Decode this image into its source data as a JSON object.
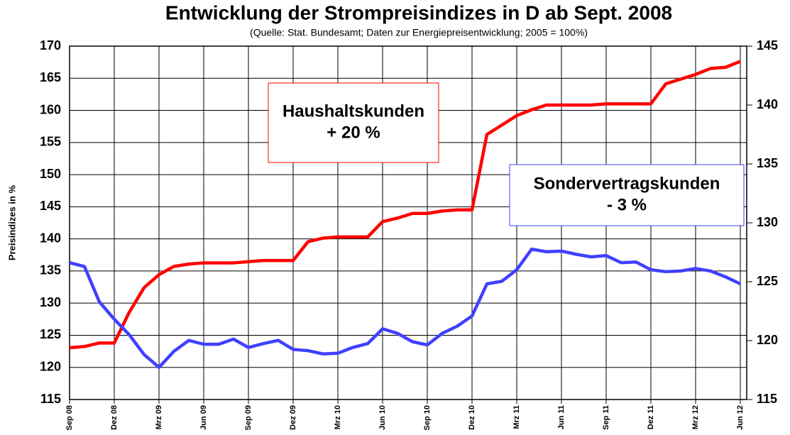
{
  "chart_data": {
    "type": "line",
    "title": "Entwicklung der Strompreisindizes in D ab Sept. 2008",
    "subtitle": "(Quelle:  Stat. Bundesamt;  Daten zur Energiepreisentwicklung;  2005 = 100%)",
    "y_label": "Preisindizes in %",
    "categories": [
      "Sep 08",
      null,
      null,
      "Dez 08",
      null,
      null,
      "Mrz 09",
      null,
      null,
      "Jun 09",
      null,
      null,
      "Sep 09",
      null,
      null,
      "Dez 09",
      null,
      null,
      "Mrz 10",
      null,
      null,
      "Jun 10",
      null,
      null,
      "Sep 10",
      null,
      null,
      "Dez 10",
      null,
      null,
      "Mrz 11",
      null,
      null,
      "Jun 11",
      null,
      null,
      "Sep 11",
      null,
      null,
      "Dez 11",
      null,
      null,
      "Mrz 12",
      null,
      null,
      "Jun 12"
    ],
    "ylim": [
      115,
      170
    ],
    "yticks": [
      115,
      120,
      125,
      130,
      135,
      140,
      145,
      150,
      155,
      160,
      165,
      170
    ],
    "y2lim": [
      115,
      145
    ],
    "y2ticks": [
      115,
      120,
      125,
      130,
      135,
      140,
      145
    ],
    "grid": true,
    "series": [
      {
        "color": "#ff0000",
        "axis": "y2",
        "values": [
          119.4,
          119.5,
          119.8,
          119.8,
          122.4,
          124.5,
          125.6,
          126.3,
          126.5,
          126.6,
          126.6,
          126.6,
          126.7,
          126.8,
          126.8,
          126.8,
          128.4,
          128.7,
          128.8,
          128.8,
          128.8,
          130.1,
          130.4,
          130.8,
          130.8,
          131.0,
          131.1,
          131.1,
          137.5,
          138.3,
          139.1,
          139.6,
          140.0,
          140.0,
          140.0,
          140.0,
          140.1,
          140.1,
          140.1,
          140.1,
          141.8,
          142.2,
          142.6,
          143.1,
          143.2,
          143.7
        ]
      },
      {
        "color": "#4040ff",
        "values": [
          136.3,
          135.7,
          130.2,
          127.5,
          125.1,
          122.0,
          120.0,
          122.5,
          124.2,
          123.6,
          123.6,
          124.4,
          123.1,
          123.7,
          124.2,
          122.8,
          122.6,
          122.1,
          122.2,
          123.1,
          123.7,
          126.0,
          125.3,
          124.0,
          123.5,
          125.3,
          126.4,
          128.0,
          133.0,
          133.4,
          135.2,
          138.4,
          138.0,
          138.1,
          137.6,
          137.2,
          137.4,
          136.3,
          136.4,
          135.2,
          134.9,
          135.0,
          135.4,
          135.0,
          134.1,
          133.0
        ]
      }
    ],
    "annotations": [
      {
        "lines": [
          "Haushaltskunden",
          "+ 20 %"
        ],
        "color": "#ff0000"
      },
      {
        "lines": [
          "Sondervertragskunden",
          "- 3 %"
        ],
        "color": "#4040ff"
      }
    ]
  }
}
